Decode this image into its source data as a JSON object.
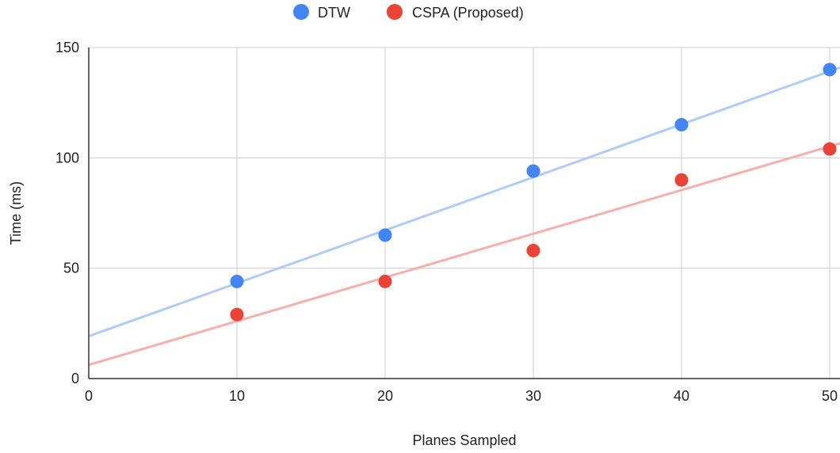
{
  "chart_data": {
    "type": "scatter",
    "title": "",
    "xlabel": "Planes Sampled",
    "ylabel": "Time (ms)",
    "xlim": [
      0,
      50
    ],
    "ylim": [
      0,
      150
    ],
    "x_ticks": [
      0,
      10,
      20,
      30,
      40,
      50
    ],
    "y_ticks": [
      0,
      50,
      100,
      150
    ],
    "x_tick_labels": [
      "0",
      "10",
      "20",
      "30",
      "40",
      "50"
    ],
    "y_tick_labels": [
      "0",
      "50",
      "100",
      "150"
    ],
    "grid": true,
    "legend_position": "top",
    "series": [
      {
        "name": "DTW",
        "color": "#4285f4",
        "trendline_color": "#aecbfa",
        "x": [
          10,
          20,
          30,
          40,
          50
        ],
        "y": [
          44,
          65,
          94,
          115,
          140
        ],
        "trendline": {
          "slope": 2.4,
          "intercept": 19.2
        }
      },
      {
        "name": "CSPA (Proposed)",
        "color": "#ea4335",
        "trendline_color": "#f4b0a9",
        "x": [
          10,
          20,
          30,
          40,
          50
        ],
        "y": [
          29,
          44,
          58,
          90,
          104
        ],
        "trendline": {
          "slope": 1.98,
          "intercept": 6.2
        }
      }
    ]
  }
}
